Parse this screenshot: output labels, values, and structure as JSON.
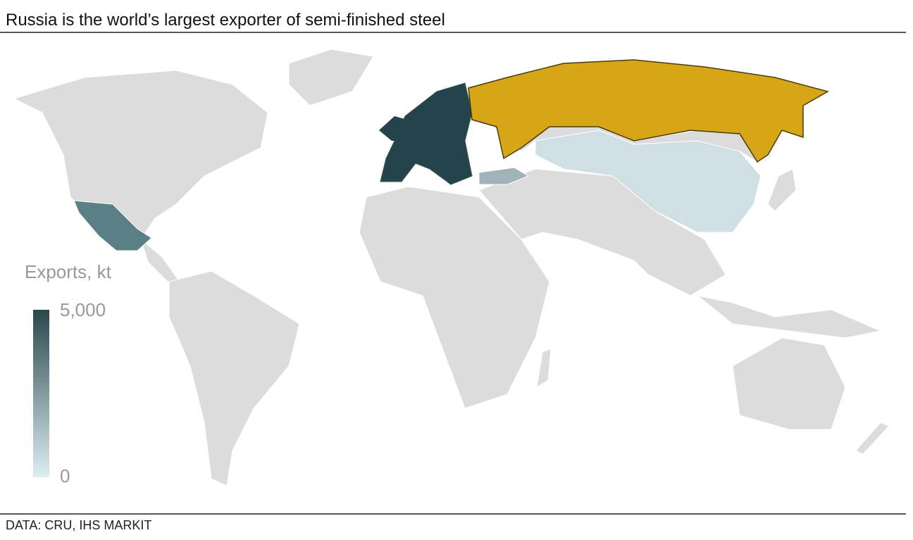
{
  "title": "Russia is the world’s largest exporter of semi-finished steel",
  "legend": {
    "title": "Exports, kt",
    "ticks": [
      {
        "value": 5000,
        "label": "5,000"
      },
      0
    ],
    "colors": [
      "#2a474c",
      "#ddeef3"
    ]
  },
  "source": "DATA: CRU, IHS MARKIT"
}
